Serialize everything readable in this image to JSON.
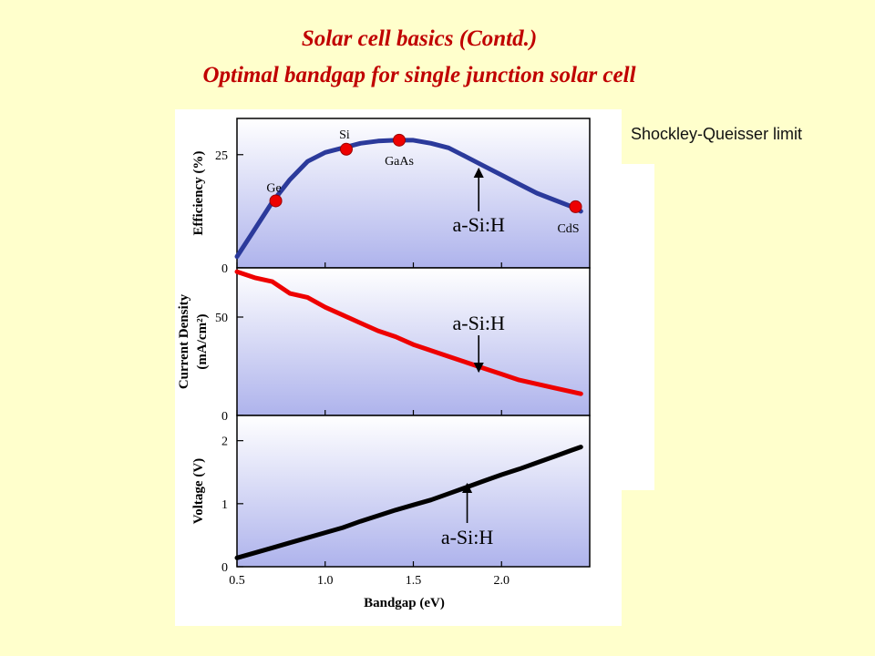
{
  "slide": {
    "title_line1": "Solar cell basics (Contd.)",
    "title_line2": "Optimal bandgap for single junction solar cell",
    "side_label": "Shockley-Queisser limit",
    "annotation": "a-Si:H"
  },
  "colors": {
    "background": "#FFFFCC",
    "title": "#C00000",
    "efficiency_line": "#2B3A9B",
    "current_line": "#EE0000",
    "voltage_line": "#000000",
    "marker": "#EE0000"
  },
  "chart_data": {
    "type": "line",
    "xlabel": "Bandgap (eV)",
    "xlim": [
      0.5,
      2.5
    ],
    "xticks": [
      "0.5",
      "1.0",
      "1.5",
      "2.0"
    ],
    "panels": [
      {
        "id": "efficiency",
        "ylabel": "Efficiency (%)",
        "ylim": [
          0,
          33
        ],
        "yticks": [
          "0",
          "25"
        ],
        "x": [
          0.5,
          0.6,
          0.7,
          0.8,
          0.9,
          1.0,
          1.1,
          1.2,
          1.3,
          1.4,
          1.5,
          1.6,
          1.7,
          1.8,
          1.9,
          2.0,
          2.1,
          2.2,
          2.3,
          2.4,
          2.45
        ],
        "y": [
          2.5,
          8.5,
          14.5,
          19.5,
          23.5,
          25.5,
          26.5,
          27.5,
          28,
          28.2,
          28.2,
          27.5,
          26.5,
          24.5,
          22.5,
          20.5,
          18.5,
          16.5,
          15,
          13.5,
          12.5
        ],
        "markers": [
          {
            "label": "Ge",
            "x": 0.72,
            "y": 14.8
          },
          {
            "label": "Si",
            "x": 1.12,
            "y": 26.2
          },
          {
            "label": "GaAs",
            "x": 1.42,
            "y": 28.2
          },
          {
            "label": "CdS",
            "x": 2.42,
            "y": 13.5
          }
        ],
        "annotation_x": 1.85
      },
      {
        "id": "current_density",
        "ylabel": "Current Density (mA/cm²)",
        "ylim": [
          0,
          75
        ],
        "yticks": [
          "0",
          "50"
        ],
        "x": [
          0.5,
          0.6,
          0.7,
          0.8,
          0.9,
          1.0,
          1.1,
          1.2,
          1.3,
          1.4,
          1.5,
          1.6,
          1.7,
          1.8,
          1.9,
          2.0,
          2.1,
          2.2,
          2.3,
          2.4,
          2.45
        ],
        "y": [
          73,
          70,
          68,
          62,
          60,
          55,
          51,
          47,
          43,
          40,
          36,
          33,
          30,
          27,
          24,
          21,
          18,
          16,
          14,
          12,
          11
        ],
        "annotation_x": 1.85
      },
      {
        "id": "voltage",
        "ylabel": "Voltage (V)",
        "ylim": [
          0,
          2.4
        ],
        "yticks": [
          "0",
          "1",
          "2"
        ],
        "x": [
          0.5,
          0.6,
          0.7,
          0.8,
          0.9,
          1.0,
          1.1,
          1.2,
          1.3,
          1.4,
          1.5,
          1.6,
          1.7,
          1.8,
          1.9,
          2.0,
          2.1,
          2.2,
          2.3,
          2.4,
          2.45
        ],
        "y": [
          0.14,
          0.22,
          0.3,
          0.38,
          0.46,
          0.54,
          0.62,
          0.72,
          0.81,
          0.9,
          0.98,
          1.06,
          1.16,
          1.26,
          1.36,
          1.46,
          1.55,
          1.65,
          1.75,
          1.85,
          1.9
        ],
        "annotation_x": 1.8
      }
    ]
  }
}
